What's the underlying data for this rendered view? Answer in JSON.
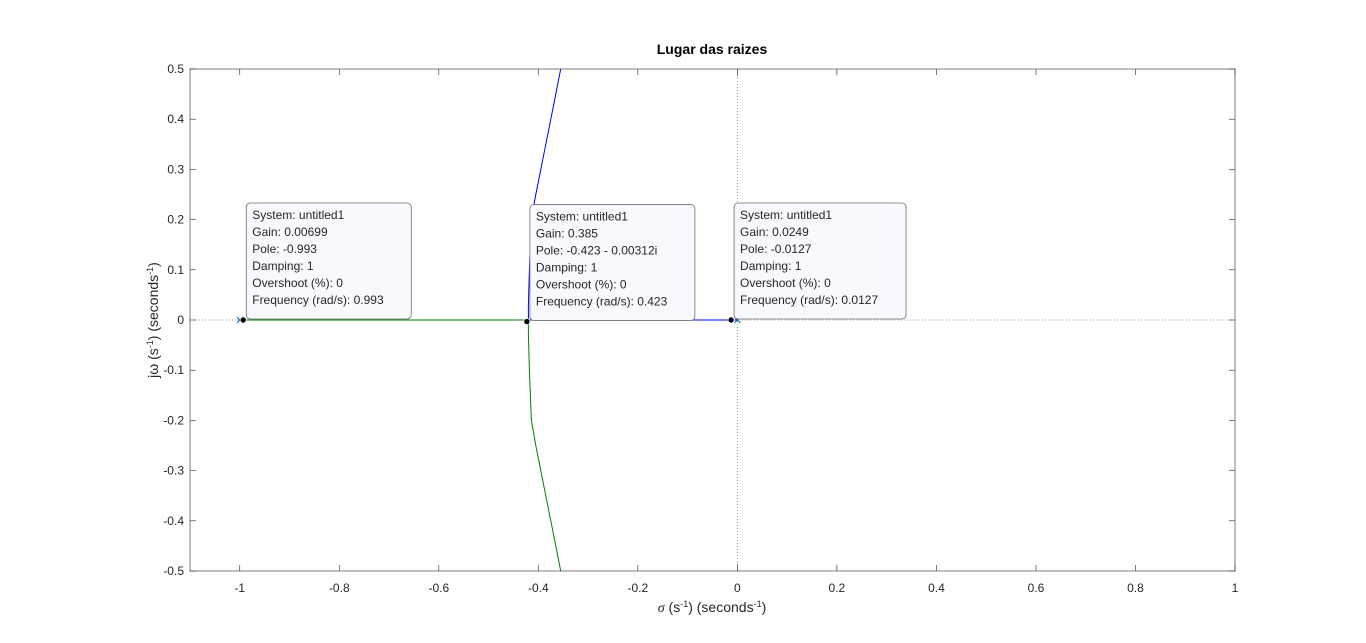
{
  "chart_data": {
    "type": "line",
    "title": "Lugar das raizes",
    "xlabel": {
      "sigma": "σ",
      "unit_main": "(s",
      "unit_exp": "-1",
      "unit_tail": ") (seconds",
      "unit_exp2": "-1",
      "unit_close": ")"
    },
    "ylabel": {
      "jw": "jω",
      "unit_main": "(s",
      "unit_exp": "-1",
      "unit_tail": ") (seconds",
      "unit_exp2": "-1",
      "unit_close": ")"
    },
    "xlim": [
      -1.1,
      1
    ],
    "ylim": [
      -0.5,
      0.5
    ],
    "xticks": [
      "-1",
      "-0.8",
      "-0.6",
      "-0.4",
      "-0.2",
      "0",
      "0.2",
      "0.4",
      "0.6",
      "0.8",
      "1"
    ],
    "xtick_values": [
      -1,
      -0.8,
      -0.6,
      -0.4,
      -0.2,
      0,
      0.2,
      0.4,
      0.6,
      0.8,
      1
    ],
    "yticks": [
      "0.5",
      "0.4",
      "0.3",
      "0.2",
      "0.1",
      "0",
      "-0.1",
      "-0.2",
      "-0.3",
      "-0.4",
      "-0.5"
    ],
    "ytick_values": [
      0.5,
      0.4,
      0.3,
      0.2,
      0.1,
      0,
      -0.1,
      -0.2,
      -0.3,
      -0.4,
      -0.5
    ],
    "grid": false,
    "open_loop_poles": [
      {
        "x": -1,
        "y": 0
      },
      {
        "x": 0,
        "y": 0
      }
    ],
    "series": [
      {
        "color": "#0000ff",
        "points": [
          [
            0,
            0
          ],
          [
            -0.1,
            0
          ],
          [
            -0.2,
            0
          ],
          [
            -0.3,
            0
          ],
          [
            -0.42,
            0
          ],
          [
            -0.42,
            0.03
          ],
          [
            -0.418,
            0.1
          ],
          [
            -0.414,
            0.2
          ],
          [
            -0.405,
            0.25
          ],
          [
            -0.395,
            0.3
          ],
          [
            -0.385,
            0.35
          ],
          [
            -0.375,
            0.4
          ],
          [
            -0.365,
            0.45
          ],
          [
            -0.355,
            0.5
          ]
        ]
      },
      {
        "color": "#008000",
        "points": [
          [
            -1,
            0
          ],
          [
            -0.9,
            0
          ],
          [
            -0.8,
            0
          ],
          [
            -0.7,
            0
          ],
          [
            -0.6,
            0
          ],
          [
            -0.5,
            0
          ],
          [
            -0.42,
            0
          ],
          [
            -0.42,
            -0.03
          ],
          [
            -0.418,
            -0.1
          ],
          [
            -0.414,
            -0.2
          ],
          [
            -0.405,
            -0.25
          ],
          [
            -0.395,
            -0.3
          ],
          [
            -0.385,
            -0.35
          ],
          [
            -0.375,
            -0.4
          ],
          [
            -0.365,
            -0.45
          ],
          [
            -0.355,
            -0.5
          ]
        ]
      }
    ],
    "data_tips": [
      {
        "marker": {
          "x": -0.993,
          "y": 0
        },
        "lines": [
          "System: untitled1",
          "Gain: 0.00699",
          "Pole: -0.993",
          "Damping: 1",
          "Overshoot (%): 0",
          "Frequency (rad/s): 0.993"
        ]
      },
      {
        "marker": {
          "x": -0.423,
          "y": -0.00312
        },
        "lines": [
          "System: untitled1",
          "Gain: 0.385",
          "Pole: -0.423 - 0.00312i",
          "Damping: 1",
          "Overshoot (%): 0",
          "Frequency (rad/s): 0.423"
        ]
      },
      {
        "marker": {
          "x": -0.0127,
          "y": 0
        },
        "lines": [
          "System: untitled1",
          "Gain: 0.0249",
          "Pole: -0.0127",
          "Damping: 1",
          "Overshoot (%): 0",
          "Frequency (rad/s): 0.0127"
        ]
      }
    ]
  }
}
